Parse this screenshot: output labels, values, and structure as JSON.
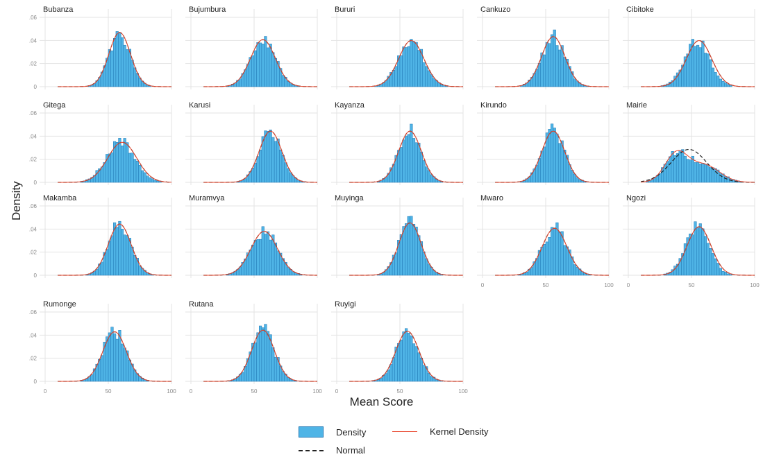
{
  "ylabel": "Density",
  "xlabel": "Mean Score",
  "legend": {
    "density": "Density",
    "kernel": "Kernel Density",
    "normal": "Normal"
  },
  "colors": {
    "bar_fill": "#4fb4e6",
    "bar_edge": "#1f77b4",
    "kernel": "#e8442a",
    "normal": "#222222",
    "grid": "#e3e3e3",
    "tick": "#888888"
  },
  "chart_data": {
    "type": "bar",
    "facets": [
      "Bubanza",
      "Bujumbura",
      "Bururi",
      "Cankuzo",
      "Cibitoke",
      "Gitega",
      "Karusi",
      "Kayanza",
      "Kirundo",
      "Mairie",
      "Makamba",
      "Muramvya",
      "Muyinga",
      "Mwaro",
      "Ngozi",
      "Rumonge",
      "Rutana",
      "Ruyigi"
    ],
    "panel_stats": [
      {
        "mean": 59,
        "sd": 8.5,
        "skew": 0.0
      },
      {
        "mean": 57,
        "sd": 9.8,
        "skew": 0.0
      },
      {
        "mean": 59,
        "sd": 10.0,
        "skew": 0.0
      },
      {
        "mean": 56,
        "sd": 9.2,
        "skew": 0.0
      },
      {
        "mean": 56,
        "sd": 10.0,
        "skew": -0.3
      },
      {
        "mean": 61,
        "sd": 11.5,
        "skew": -0.2
      },
      {
        "mean": 63,
        "sd": 9.0,
        "skew": 0.0
      },
      {
        "mean": 58,
        "sd": 9.0,
        "skew": 0.0
      },
      {
        "mean": 56,
        "sd": 9.0,
        "skew": 0.0
      },
      {
        "mean": 48,
        "sd": 14.0,
        "skew": 0.0
      },
      {
        "mean": 59,
        "sd": 9.0,
        "skew": 0.0
      },
      {
        "mean": 58,
        "sd": 10.5,
        "skew": 0.0
      },
      {
        "mean": 58,
        "sd": 8.8,
        "skew": 0.0
      },
      {
        "mean": 57,
        "sd": 9.8,
        "skew": 0.0
      },
      {
        "mean": 56,
        "sd": 9.5,
        "skew": -0.3
      },
      {
        "mean": 55,
        "sd": 9.3,
        "skew": 0.0
      },
      {
        "mean": 57,
        "sd": 9.0,
        "skew": 0.0
      },
      {
        "mean": 56,
        "sd": 9.2,
        "skew": 0.0
      }
    ],
    "x_ticks": [
      0,
      50,
      100
    ],
    "x_tick_labels": [
      "0",
      "50",
      "100"
    ],
    "y_ticks": [
      0,
      0.02,
      0.04,
      0.06
    ],
    "y_tick_labels": [
      "0",
      ".02",
      ".04",
      ".06"
    ],
    "xlim": [
      0,
      100
    ],
    "ylim": [
      0,
      0.06
    ],
    "x_axis_shown_on": [
      "Mwaro",
      "Ngozi",
      "Rumonge",
      "Rutana",
      "Ruyigi"
    ],
    "y_axis_shown_on": [
      "Bubanza",
      "Gitega",
      "Makamba",
      "Rumonge"
    ],
    "grid": true
  }
}
